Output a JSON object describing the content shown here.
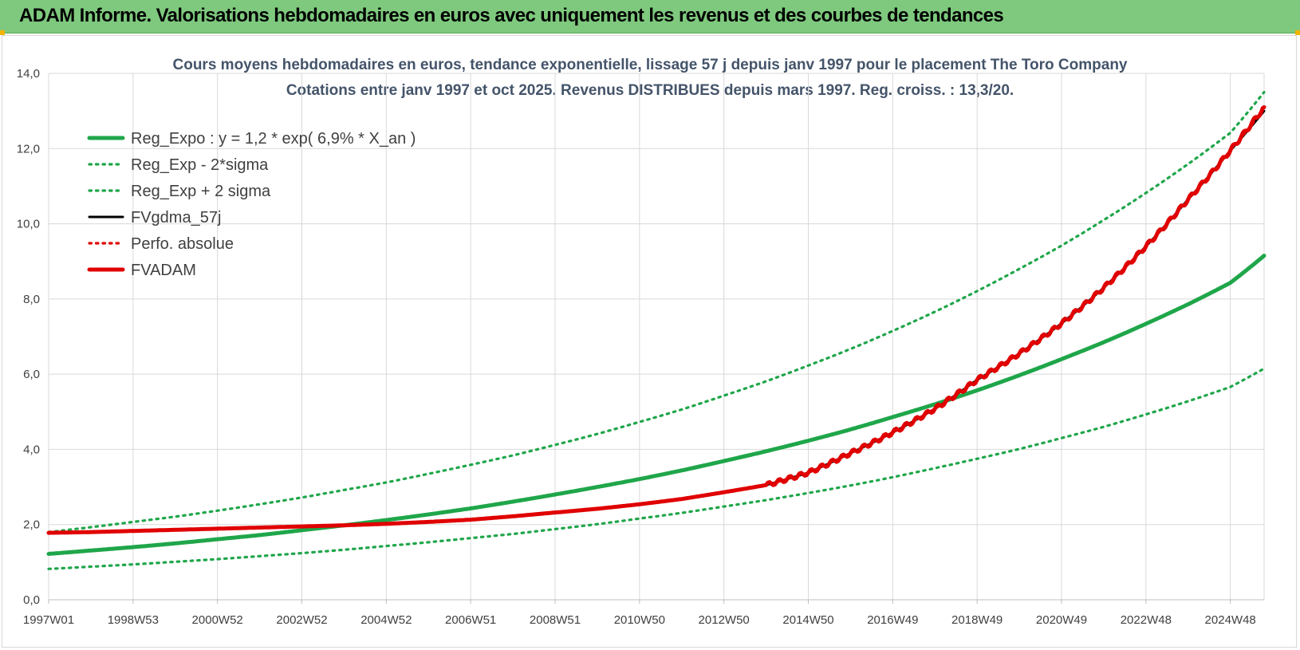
{
  "header": {
    "title": "ADAM Informe. Valorisations hebdomadaires en euros avec uniquement les revenus et des courbes de tendances"
  },
  "colors": {
    "header_bg": "#7ec97e",
    "green": "#1fa64a",
    "red": "#e00000",
    "black": "#000000",
    "grid": "#d9d9d9",
    "title": "#44546a"
  },
  "chart_data": {
    "type": "line",
    "title": "Cours moyens hebdomadaires en euros, tendance exponentielle, lissage 57 j depuis janv 1997 pour le placement The Toro Company",
    "subtitle": "Cotations entre janv 1997 et oct 2025. Revenus DISTRIBUES depuis mars 1997. Reg. croiss. : 13,3/20.",
    "xlabel": "",
    "ylabel": "",
    "ylim": [
      0,
      14
    ],
    "xlim": [
      1997.0,
      2025.8
    ],
    "y_ticks": [
      0,
      2,
      4,
      6,
      8,
      10,
      12,
      14
    ],
    "y_tick_labels": [
      "0,0",
      "2,0",
      "4,0",
      "6,0",
      "8,0",
      "10,0",
      "12,0",
      "14,0"
    ],
    "x_tick_labels": [
      "1997W01",
      "1998W53",
      "2000W52",
      "2002W52",
      "2004W52",
      "2006W51",
      "2008W51",
      "2010W50",
      "2012W50",
      "2014W50",
      "2016W49",
      "2018W49",
      "2020W49",
      "2022W48",
      "2024W48"
    ],
    "x_tick_positions": [
      1997.0,
      1999.0,
      2001.0,
      2003.0,
      2005.0,
      2007.0,
      2009.0,
      2011.0,
      2013.0,
      2015.0,
      2017.0,
      2019.0,
      2021.0,
      2023.0,
      2025.0
    ],
    "grid": true,
    "legend_position": "top-left",
    "x": [
      1997.0,
      1998.0,
      1999.0,
      2000.0,
      2001.0,
      2002.0,
      2003.0,
      2004.0,
      2005.0,
      2006.0,
      2007.0,
      2008.0,
      2009.0,
      2010.0,
      2011.0,
      2012.0,
      2013.0,
      2014.0,
      2015.0,
      2016.0,
      2017.0,
      2018.0,
      2019.0,
      2020.0,
      2021.0,
      2022.0,
      2023.0,
      2024.0,
      2025.0,
      2025.8
    ],
    "series": [
      {
        "name": "Reg_Expo : y = 1,2 * exp( 6,9% *  X_an )",
        "style": "solid-thick",
        "color": "#1fa64a",
        "values": [
          1.22,
          1.31,
          1.4,
          1.5,
          1.61,
          1.72,
          1.85,
          1.98,
          2.12,
          2.27,
          2.43,
          2.61,
          2.8,
          3.0,
          3.21,
          3.44,
          3.69,
          3.95,
          4.23,
          4.53,
          4.86,
          5.2,
          5.57,
          5.97,
          6.4,
          6.85,
          7.34,
          7.86,
          8.43,
          9.15
        ]
      },
      {
        "name": "Reg_Exp - 2*sigma",
        "style": "dotted",
        "color": "#1fa64a",
        "values": [
          0.82,
          0.88,
          0.94,
          1.01,
          1.08,
          1.16,
          1.24,
          1.33,
          1.43,
          1.53,
          1.64,
          1.75,
          1.88,
          2.01,
          2.16,
          2.31,
          2.48,
          2.65,
          2.84,
          3.04,
          3.26,
          3.5,
          3.75,
          4.01,
          4.3,
          4.6,
          4.93,
          5.28,
          5.66,
          6.15
        ]
      },
      {
        "name": "Reg_Exp + 2 sigma",
        "style": "dotted",
        "color": "#1fa64a",
        "values": [
          1.8,
          1.93,
          2.07,
          2.21,
          2.37,
          2.54,
          2.72,
          2.92,
          3.12,
          3.35,
          3.59,
          3.84,
          4.12,
          4.41,
          4.73,
          5.06,
          5.43,
          5.81,
          6.23,
          6.67,
          7.15,
          7.66,
          8.21,
          8.8,
          9.42,
          10.1,
          10.82,
          11.59,
          12.42,
          13.5
        ]
      },
      {
        "name": "FVgdma_57j",
        "style": "solid",
        "color": "#000000",
        "values": [
          1.78,
          1.8,
          1.83,
          1.86,
          1.89,
          1.92,
          1.95,
          1.98,
          2.02,
          2.07,
          2.13,
          2.22,
          2.32,
          2.42,
          2.54,
          2.68,
          2.86,
          3.05,
          3.38,
          3.9,
          4.45,
          5.08,
          5.85,
          6.55,
          7.35,
          8.3,
          9.4,
          10.65,
          11.95,
          13.0
        ]
      },
      {
        "name": "Perfo. absolue",
        "style": "dotted",
        "color": "#e00000",
        "values": [
          1.78,
          1.8,
          1.83,
          1.86,
          1.89,
          1.92,
          1.95,
          1.98,
          2.02,
          2.07,
          2.13,
          2.22,
          2.32,
          2.42,
          2.54,
          2.68,
          2.86,
          3.05,
          3.38,
          3.9,
          4.45,
          5.08,
          5.85,
          6.55,
          7.35,
          8.3,
          9.4,
          10.65,
          11.95,
          13.05
        ]
      },
      {
        "name": "FVADAM",
        "style": "solid-thick-stepped",
        "color": "#e00000",
        "values": [
          1.78,
          1.8,
          1.83,
          1.86,
          1.89,
          1.92,
          1.95,
          1.98,
          2.02,
          2.07,
          2.13,
          2.22,
          2.32,
          2.42,
          2.54,
          2.68,
          2.86,
          3.05,
          3.38,
          3.9,
          4.45,
          5.08,
          5.85,
          6.55,
          7.35,
          8.3,
          9.4,
          10.65,
          11.95,
          13.1
        ]
      }
    ]
  }
}
